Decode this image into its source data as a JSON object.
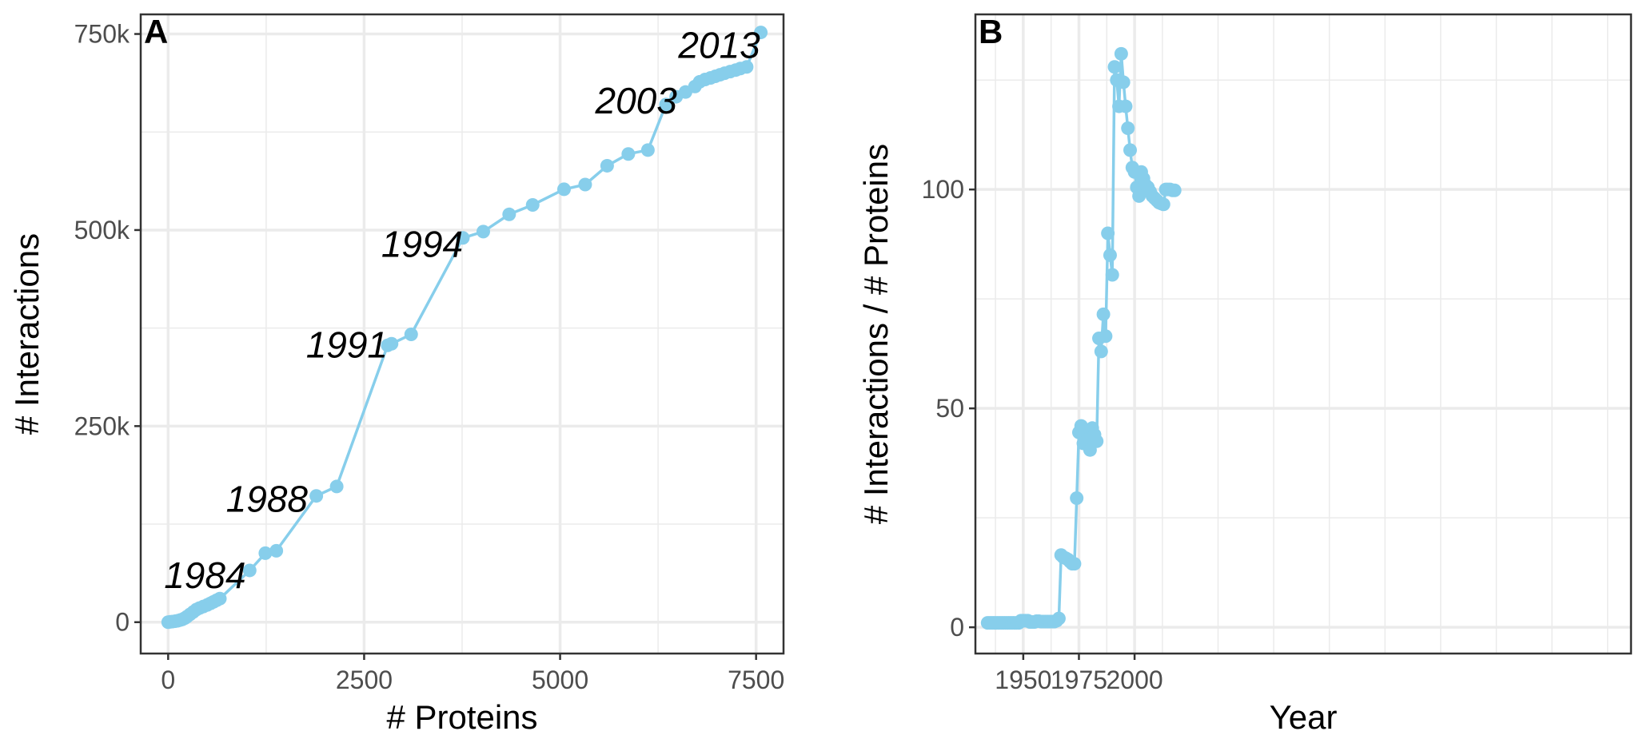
{
  "chart_data": [
    {
      "type": "line",
      "panel_label": "A",
      "xlabel": "# Proteins",
      "ylabel": "# Interactions",
      "xlim": [
        -350,
        7850
      ],
      "ylim": [
        -40000,
        775000
      ],
      "xticks": [
        0,
        2500,
        5000,
        7500
      ],
      "xtick_labels": [
        "0",
        "2500",
        "5000",
        "7500"
      ],
      "yticks": [
        0,
        250000,
        500000,
        750000
      ],
      "ytick_labels": [
        "0",
        "250k",
        "500k",
        "750k"
      ],
      "grid": true,
      "legend": "none",
      "color": "#87CEEB",
      "series": [
        {
          "x": [
            0,
            30,
            60,
            90,
            120,
            150,
            180,
            210,
            240,
            280,
            320,
            360,
            400,
            450,
            500,
            540,
            580,
            620,
            660,
            1040,
            1240,
            1380,
            1890,
            2150,
            2800,
            2850,
            3100,
            3760,
            4020,
            4350,
            4650,
            5050,
            5320,
            5600,
            5870,
            6120,
            6350,
            6480,
            6600,
            6720,
            6780,
            6850,
            6920,
            6980,
            7040,
            7100,
            7170,
            7240,
            7300,
            7380,
            7560
          ],
          "y": [
            0,
            500,
            800,
            1200,
            1800,
            2600,
            3500,
            5000,
            7000,
            10000,
            13000,
            16000,
            18000,
            20000,
            22000,
            24000,
            26000,
            28000,
            30000,
            66000,
            88000,
            91000,
            161000,
            173000,
            353000,
            355000,
            367000,
            490000,
            498000,
            520000,
            532000,
            552000,
            558000,
            582000,
            597000,
            602000,
            660000,
            670000,
            676000,
            683000,
            689000,
            692000,
            694000,
            696000,
            698000,
            700000,
            702000,
            704000,
            706000,
            708000,
            752000
          ]
        }
      ],
      "annotations": [
        {
          "text": "1984",
          "x": 470,
          "y": 60000
        },
        {
          "text": "1988",
          "x": 1260,
          "y": 157000
        },
        {
          "text": "1991",
          "x": 2280,
          "y": 354000
        },
        {
          "text": "1994",
          "x": 3240,
          "y": 482000
        },
        {
          "text": "2003",
          "x": 5970,
          "y": 665000
        },
        {
          "text": "2013",
          "x": 7030,
          "y": 736000
        }
      ]
    },
    {
      "type": "line",
      "panel_label": "B",
      "xlabel": "Year",
      "ylabel": "# Interactions / # Proteins",
      "xlim": [
        1928.5,
        2223
      ],
      "ylim": [
        -6,
        140
      ],
      "xticks": [
        1950,
        1975,
        2000
      ],
      "xtick_labels": [
        "1950",
        "1975",
        "2000"
      ],
      "yticks": [
        0,
        50,
        100
      ],
      "ytick_labels": [
        "0",
        "50",
        "100"
      ],
      "grid": true,
      "legend": "none",
      "color": "#87CEEB",
      "series": [
        {
          "x": [
            1934,
            1935,
            1936,
            1937,
            1938,
            1939,
            1940,
            1941,
            1942,
            1943,
            1944,
            1945,
            1946,
            1947,
            1948,
            1949,
            1950,
            1951,
            1952,
            1953,
            1954,
            1955,
            1956,
            1957,
            1958,
            1959,
            1960,
            1961,
            1962,
            1963,
            1964,
            1965,
            1966,
            1967,
            1968,
            1969,
            1970,
            1971,
            1972,
            1973,
            1974,
            1975,
            1976,
            1977,
            1978,
            1979,
            1980,
            1981,
            1982,
            1983,
            1984,
            1985,
            1986,
            1987,
            1988,
            1989,
            1990,
            1991,
            1992,
            1993,
            1994,
            1995,
            1996,
            1997,
            1998,
            1999,
            2000,
            2001,
            2002,
            2003,
            2004,
            2005,
            2006,
            2007,
            2008,
            2009,
            2010,
            2011,
            2012,
            2013,
            2014,
            2015,
            2016,
            2017,
            2018
          ],
          "y": [
            1,
            1,
            1,
            1,
            1,
            1,
            1,
            1,
            1,
            1,
            1,
            1,
            1,
            1,
            1,
            1.5,
            1.5,
            1.5,
            1.5,
            1.2,
            1.2,
            1.2,
            1.4,
            1.4,
            1.3,
            1.3,
            1.3,
            1.3,
            1.3,
            1.3,
            1.3,
            1.5,
            2,
            16.5,
            16,
            15.8,
            15.5,
            15,
            14.5,
            14.5,
            29.5,
            44.5,
            46,
            42,
            45,
            43,
            40.5,
            45.5,
            44,
            42.5,
            66,
            63,
            71.5,
            66.5,
            90,
            85,
            80.5,
            128,
            125,
            119,
            131,
            124.5,
            119,
            114,
            109,
            105,
            104,
            100.5,
            98.5,
            104,
            102.5,
            101,
            100.5,
            99.5,
            98.5,
            98,
            97.5,
            97,
            96.8,
            96.6,
            100,
            100,
            100,
            99.8,
            99.8
          ]
        }
      ]
    }
  ]
}
